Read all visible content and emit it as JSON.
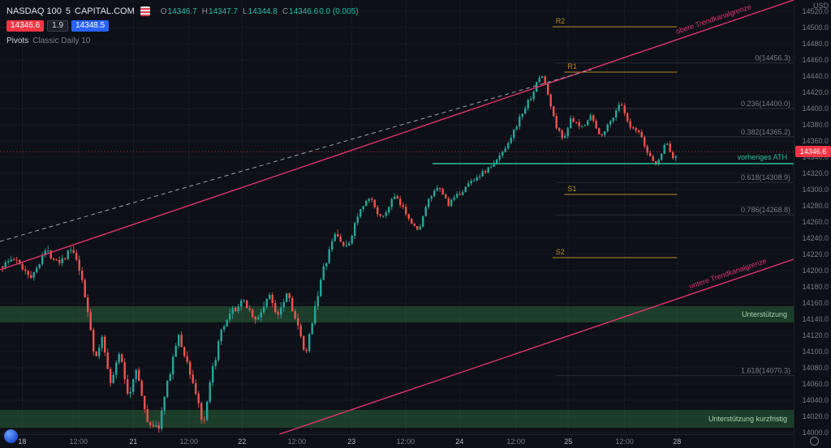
{
  "toolbar": {
    "symbol": "NASDAQ 100",
    "interval": "5",
    "exchange": "CAPITAL.COM",
    "ohlc": {
      "o_label": "O",
      "o_value": "14346.7",
      "h_label": "H",
      "h_value": "14347.7",
      "l_label": "L",
      "l_value": "14344.8",
      "c_label": "C",
      "c_value": "14346.6",
      "change": "0.0 (0.005)"
    },
    "sell_price": "14346.6",
    "spread": "1.9",
    "buy_price": "14348.5",
    "indicator_name": "Pivots",
    "indicator_params": "Classic Daily 10"
  },
  "price_axis": {
    "currency": "USD",
    "tick_min": 14000,
    "tick_max": 14520,
    "tick_step": 20,
    "last_price": "14346.6"
  },
  "chart_data": {
    "type": "candlestick",
    "title": "NASDAQ 100 · 5 · CAPITAL.COM",
    "interval_minutes": 5,
    "currency": "USD",
    "ylim": [
      13998,
      14534
    ],
    "grid": true,
    "legend_position": "top-left",
    "time_labels": [
      {
        "text": "18",
        "x": 0.028,
        "major": true
      },
      {
        "text": "12:00",
        "x": 0.099,
        "major": false
      },
      {
        "text": "21",
        "x": 0.168,
        "major": true
      },
      {
        "text": "12:00",
        "x": 0.238,
        "major": false
      },
      {
        "text": "22",
        "x": 0.305,
        "major": true
      },
      {
        "text": "12:00",
        "x": 0.374,
        "major": false
      },
      {
        "text": "23",
        "x": 0.443,
        "major": true
      },
      {
        "text": "12:00",
        "x": 0.511,
        "major": false
      },
      {
        "text": "24",
        "x": 0.579,
        "major": true
      },
      {
        "text": "12:00",
        "x": 0.65,
        "major": false
      },
      {
        "text": "25",
        "x": 0.716,
        "major": true
      },
      {
        "text": "12:00",
        "x": 0.787,
        "major": false
      },
      {
        "text": "28",
        "x": 0.853,
        "major": true
      }
    ],
    "price_path": [
      [
        0.0,
        14205
      ],
      [
        0.015,
        14215
      ],
      [
        0.04,
        14192
      ],
      [
        0.054,
        14225
      ],
      [
        0.074,
        14212
      ],
      [
        0.089,
        14226
      ],
      [
        0.099,
        14200
      ],
      [
        0.111,
        14142
      ],
      [
        0.119,
        14086
      ],
      [
        0.127,
        14118
      ],
      [
        0.139,
        14060
      ],
      [
        0.149,
        14100
      ],
      [
        0.161,
        14042
      ],
      [
        0.17,
        14082
      ],
      [
        0.183,
        14016
      ],
      [
        0.198,
        14004
      ],
      [
        0.21,
        14062
      ],
      [
        0.223,
        14120
      ],
      [
        0.236,
        14082
      ],
      [
        0.249,
        14036
      ],
      [
        0.255,
        14004
      ],
      [
        0.265,
        14070
      ],
      [
        0.277,
        14122
      ],
      [
        0.292,
        14150
      ],
      [
        0.307,
        14162
      ],
      [
        0.322,
        14136
      ],
      [
        0.337,
        14170
      ],
      [
        0.348,
        14146
      ],
      [
        0.361,
        14175
      ],
      [
        0.374,
        14130
      ],
      [
        0.384,
        14092
      ],
      [
        0.394,
        14150
      ],
      [
        0.406,
        14200
      ],
      [
        0.421,
        14246
      ],
      [
        0.436,
        14226
      ],
      [
        0.45,
        14270
      ],
      [
        0.465,
        14290
      ],
      [
        0.48,
        14262
      ],
      [
        0.495,
        14292
      ],
      [
        0.51,
        14272
      ],
      [
        0.525,
        14248
      ],
      [
        0.54,
        14290
      ],
      [
        0.552,
        14302
      ],
      [
        0.564,
        14282
      ],
      [
        0.579,
        14296
      ],
      [
        0.594,
        14312
      ],
      [
        0.609,
        14322
      ],
      [
        0.622,
        14332
      ],
      [
        0.634,
        14350
      ],
      [
        0.645,
        14370
      ],
      [
        0.657,
        14395
      ],
      [
        0.668,
        14415
      ],
      [
        0.681,
        14444
      ],
      [
        0.688,
        14422
      ],
      [
        0.698,
        14382
      ],
      [
        0.708,
        14362
      ],
      [
        0.718,
        14386
      ],
      [
        0.731,
        14376
      ],
      [
        0.743,
        14392
      ],
      [
        0.754,
        14366
      ],
      [
        0.767,
        14382
      ],
      [
        0.78,
        14408
      ],
      [
        0.792,
        14376
      ],
      [
        0.804,
        14370
      ],
      [
        0.814,
        14346
      ],
      [
        0.827,
        14330
      ],
      [
        0.837,
        14360
      ],
      [
        0.847,
        14338
      ],
      [
        0.853,
        14346.6
      ]
    ],
    "last_bar": {
      "open": 14346.7,
      "high": 14347.7,
      "low": 14344.8,
      "close": 14346.6
    },
    "levels": {
      "pivot_points": [
        {
          "label": "R2",
          "price": 14501,
          "x1": 0.696,
          "x2": 0.853
        },
        {
          "label": "R1",
          "price": 14445,
          "x1": 0.711,
          "x2": 0.853
        },
        {
          "label": "S1",
          "price": 14294,
          "x1": 0.711,
          "x2": 0.853
        },
        {
          "label": "S2",
          "price": 14216,
          "x1": 0.696,
          "x2": 0.853
        }
      ],
      "fibonacci": [
        {
          "label": "0(14456.3)",
          "price": 14456.3
        },
        {
          "label": "0.236(14400.0)",
          "price": 14400.0
        },
        {
          "label": "0.382(14365.2)",
          "price": 14365.2
        },
        {
          "label": "0.618(14308.9)",
          "price": 14308.9
        },
        {
          "label": "0.786(14268.8)",
          "price": 14268.8
        },
        {
          "label": "1.618(14070.3)",
          "price": 14070.3
        }
      ],
      "previous_ath": {
        "label": "vorheriges ATH",
        "price": 14332,
        "x1": 0.545,
        "x2": 1.0
      },
      "support_zones": [
        {
          "label": "Unterstützung",
          "price_top": 14156,
          "price_bottom": 14136
        },
        {
          "label": "Unterstützung kurzfristig",
          "price_top": 14028,
          "price_bottom": 14006
        }
      ],
      "trend_channel": {
        "upper": {
          "label": "obere Trendkanalgrenze",
          "x1": 0.0,
          "price1": 14201,
          "x2": 1.0,
          "price2": 14534,
          "label_x": 0.9
        },
        "lower": {
          "label": "untere Trendkanalgrenze",
          "x1": 0.352,
          "price1": 13998,
          "x2": 1.0,
          "price2": 14214,
          "label_x": 0.918
        },
        "inner_dashed": {
          "x1": 0.0,
          "price1": 14236,
          "x2": 0.745,
          "price2": 14448
        }
      }
    },
    "colors": {
      "up": "#26a69a",
      "down": "#ef5350",
      "trend": "#e0356e",
      "dashed": "#9aa0aa",
      "pivot": "#b5892e",
      "fib_label": "#787b86",
      "fib_line": "rgba(120,123,134,0.28)",
      "ath": "#2fbf9c",
      "zone_fill": "rgba(44,105,62,0.50)",
      "zone_label": "#aed3ae",
      "grid": "rgba(255,255,255,0.045)",
      "last_price_line": "rgba(242,54,69,0.45)"
    }
  }
}
